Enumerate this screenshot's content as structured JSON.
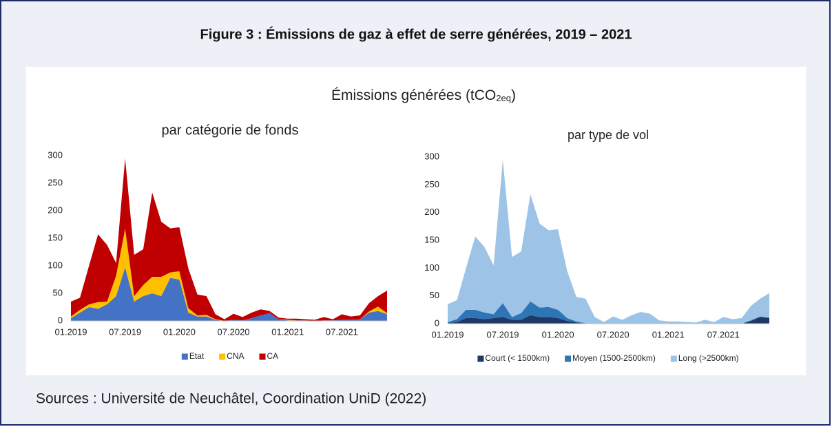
{
  "title": "Figure 3 : Émissions de gaz à effet de serre générées, 2019 – 2021",
  "heading": {
    "text": "Émissions générées (tCO",
    "sub": "2eq",
    "tail": ")"
  },
  "source": "Sources : Université de Neuchâtel, Coordination UniD (2022)",
  "chart_data": [
    {
      "type": "area",
      "stacked": true,
      "title": "par catégorie de fonds",
      "categories": [
        "01.2019",
        null,
        null,
        null,
        null,
        null,
        "07.2019",
        null,
        null,
        null,
        null,
        null,
        "01.2020",
        null,
        null,
        null,
        null,
        null,
        "07.2020",
        null,
        null,
        null,
        null,
        null,
        "01.2021",
        null,
        null,
        null,
        null,
        null,
        "07.2021",
        null,
        null,
        null,
        null,
        null
      ],
      "series": [
        {
          "name": "Etat",
          "color": "#4472c4",
          "values": [
            5,
            15,
            25,
            22,
            30,
            45,
            97,
            35,
            45,
            50,
            45,
            78,
            75,
            15,
            8,
            8,
            2,
            0,
            2,
            1,
            5,
            10,
            14,
            3,
            1,
            1,
            1,
            0,
            1,
            1,
            2,
            2,
            3,
            15,
            18,
            12
          ]
        },
        {
          "name": "CNA",
          "color": "#ffc000",
          "values": [
            3,
            5,
            5,
            12,
            5,
            37,
            70,
            10,
            20,
            30,
            35,
            10,
            15,
            8,
            2,
            3,
            1,
            0,
            0,
            0,
            0,
            0,
            0,
            0,
            1,
            0,
            0,
            0,
            0,
            0,
            0,
            0,
            0,
            2,
            8,
            2
          ]
        },
        {
          "name": "CA",
          "color": "#c00000",
          "values": [
            27,
            22,
            70,
            123,
            103,
            23,
            128,
            75,
            65,
            153,
            100,
            80,
            80,
            72,
            38,
            34,
            9,
            3,
            11,
            6,
            10,
            11,
            4,
            3,
            2,
            3,
            2,
            2,
            6,
            2,
            10,
            6,
            7,
            15,
            19,
            41
          ]
        }
      ],
      "ylim": [
        0,
        300
      ],
      "yticks": [
        0,
        50,
        100,
        150,
        200,
        250,
        300
      ],
      "grid": false,
      "legend": "bottom"
    },
    {
      "type": "area",
      "stacked": true,
      "title": "par type de vol",
      "categories": [
        "01.2019",
        null,
        null,
        null,
        null,
        null,
        "07.2019",
        null,
        null,
        null,
        null,
        null,
        "01.2020",
        null,
        null,
        null,
        null,
        null,
        "07.2020",
        null,
        null,
        null,
        null,
        null,
        "01.2021",
        null,
        null,
        null,
        null,
        null,
        "07.2021",
        null,
        null,
        null,
        null,
        null
      ],
      "series": [
        {
          "name": "Court (< 1500km)",
          "color": "#1f3864",
          "values": [
            1,
            3,
            10,
            10,
            8,
            10,
            12,
            7,
            7,
            15,
            12,
            12,
            10,
            5,
            2,
            0,
            0,
            0,
            0,
            0,
            0,
            0,
            0,
            0,
            0,
            0,
            0,
            0,
            0,
            0,
            0,
            0,
            0,
            5,
            12,
            10
          ]
        },
        {
          "name": "Moyen (1500-2500km)",
          "color": "#2e75b6",
          "values": [
            2,
            5,
            15,
            15,
            12,
            7,
            25,
            5,
            12,
            25,
            17,
            18,
            15,
            5,
            2,
            1,
            0,
            0,
            0,
            0,
            0,
            0,
            0,
            0,
            0,
            0,
            0,
            0,
            0,
            0,
            0,
            0,
            0,
            1,
            1,
            1
          ]
        },
        {
          "name": "Long (>2500km)",
          "color": "#9dc3e6",
          "values": [
            32,
            34,
            75,
            132,
            118,
            88,
            258,
            108,
            111,
            193,
            151,
            138,
            145,
            85,
            44,
            44,
            12,
            3,
            13,
            7,
            15,
            21,
            18,
            6,
            4,
            4,
            3,
            2,
            7,
            3,
            12,
            8,
            10,
            26,
            32,
            44
          ]
        }
      ],
      "ylim": [
        0,
        300
      ],
      "yticks": [
        0,
        50,
        100,
        150,
        200,
        250,
        300
      ],
      "grid": false,
      "legend": "bottom"
    }
  ]
}
